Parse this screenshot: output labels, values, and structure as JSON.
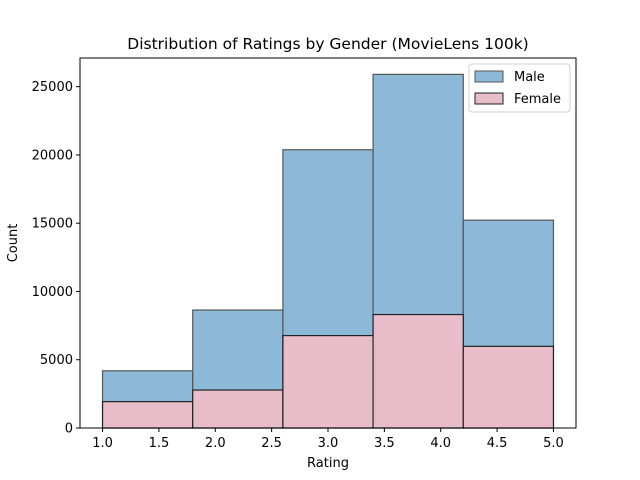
{
  "chart_data": {
    "type": "bar",
    "subtype": "overlaid-histogram",
    "title": "Distribution of Ratings by Gender (MovieLens 100k)",
    "xlabel": "Rating",
    "ylabel": "Count",
    "xlim": [
      0.8,
      5.2
    ],
    "ylim": [
      0,
      27100
    ],
    "bin_edges": [
      1.0,
      1.8,
      2.6,
      3.4,
      4.2,
      5.0
    ],
    "x_ticks": [
      1.0,
      1.5,
      2.0,
      2.5,
      3.0,
      3.5,
      4.0,
      4.5,
      5.0
    ],
    "x_tick_labels": [
      "1.0",
      "1.5",
      "2.0",
      "2.5",
      "3.0",
      "3.5",
      "4.0",
      "4.5",
      "5.0"
    ],
    "y_ticks": [
      0,
      5000,
      10000,
      15000,
      20000,
      25000
    ],
    "y_tick_labels": [
      "0",
      "5000",
      "10000",
      "15000",
      "20000",
      "25000"
    ],
    "grid": false,
    "legend_position": "top-right",
    "series": [
      {
        "name": "Male",
        "color": "#8db9d9",
        "values": [
          4190,
          8640,
          20380,
          25900,
          15220
        ]
      },
      {
        "name": "Female",
        "color": "#e8bcc9",
        "values": [
          1930,
          2780,
          6770,
          8310,
          5980
        ]
      }
    ]
  }
}
